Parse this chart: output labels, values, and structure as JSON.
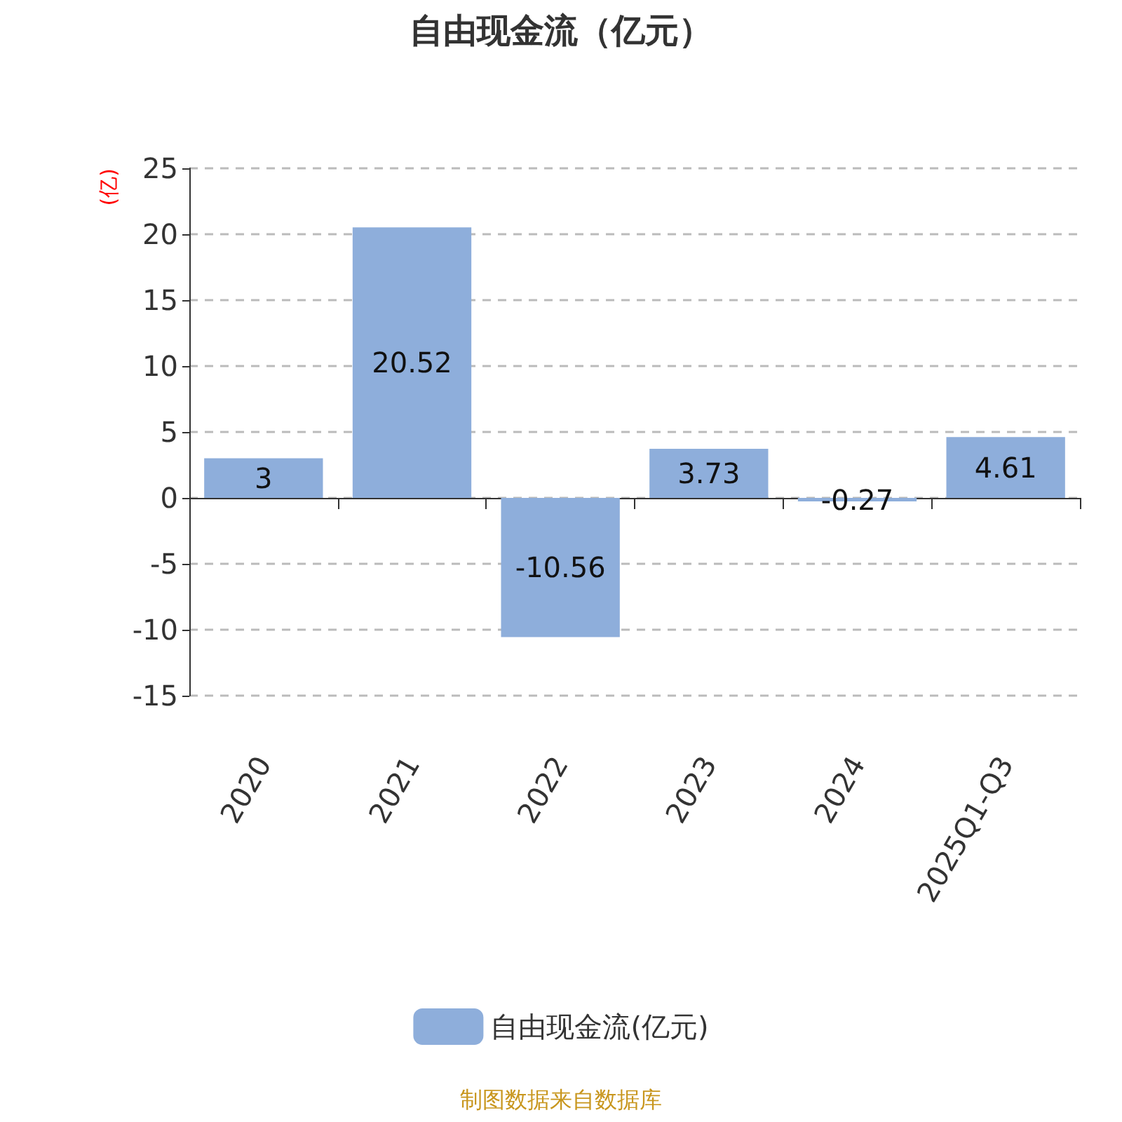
{
  "chart_data": {
    "type": "bar",
    "title": "自由现金流（亿元）",
    "ylabel": "(亿)",
    "categories": [
      "2020",
      "2021",
      "2022",
      "2023",
      "2024",
      "2025Q1-Q3"
    ],
    "series": [
      {
        "name": "自由现金流(亿元)",
        "color": "#8eaedb",
        "values": [
          3,
          20.52,
          -10.56,
          3.73,
          -0.27,
          4.61
        ]
      }
    ],
    "ylim": [
      -15,
      25
    ],
    "yticks": [
      -15,
      -10,
      -5,
      0,
      5,
      10,
      15,
      20,
      25
    ],
    "grid": "y",
    "legend": "bottom",
    "data_labels": true,
    "annotations": [
      "制图数据来自数据库"
    ]
  }
}
